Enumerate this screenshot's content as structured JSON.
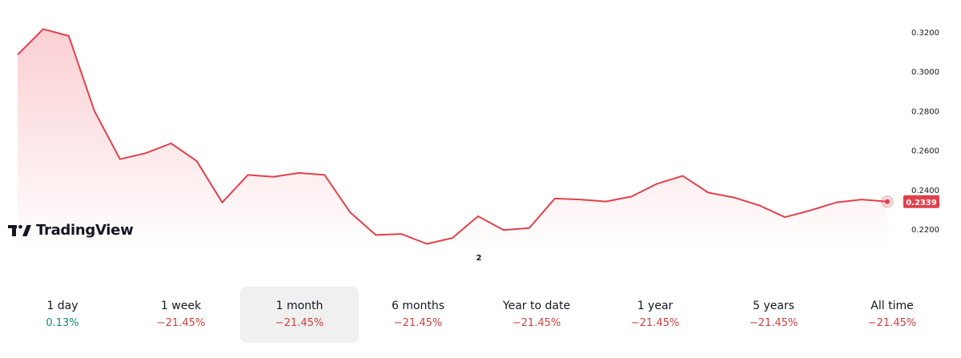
{
  "chart_data": {
    "type": "area",
    "y_axis_ticks": [
      "0.3200",
      "0.3000",
      "0.2800",
      "0.2600",
      "0.2400",
      "0.2200"
    ],
    "ylim": [
      0.22,
      0.32
    ],
    "x_tick_labels": [
      "2"
    ],
    "series": [
      {
        "values": [
          0.3085,
          0.3215,
          0.318,
          0.28,
          0.2555,
          0.2585,
          0.2635,
          0.2545,
          0.2335,
          0.2475,
          0.2465,
          0.2485,
          0.2475,
          0.2285,
          0.217,
          0.2175,
          0.2125,
          0.2155,
          0.2265,
          0.2195,
          0.2205,
          0.2355,
          0.235,
          0.234,
          0.2365,
          0.243,
          0.247,
          0.2385,
          0.236,
          0.232,
          0.226,
          0.2295,
          0.2335,
          0.235,
          0.2339
        ]
      }
    ],
    "last_value_label": "0.2339",
    "line_color": "#e0414b",
    "fill_color": "#f7a8ae",
    "grid": false
  },
  "logo": {
    "text": "TradingView"
  },
  "periods": [
    {
      "label": "1 day",
      "change": "0.13%",
      "direction": "up",
      "active": false
    },
    {
      "label": "1 week",
      "change": "−21.45%",
      "direction": "down",
      "active": false
    },
    {
      "label": "1 month",
      "change": "−21.45%",
      "direction": "down",
      "active": true
    },
    {
      "label": "6 months",
      "change": "−21.45%",
      "direction": "down",
      "active": false
    },
    {
      "label": "Year to date",
      "change": "−21.45%",
      "direction": "down",
      "active": false
    },
    {
      "label": "1 year",
      "change": "−21.45%",
      "direction": "down",
      "active": false
    },
    {
      "label": "5 years",
      "change": "−21.45%",
      "direction": "down",
      "active": false
    },
    {
      "label": "All time",
      "change": "−21.45%",
      "direction": "down",
      "active": false
    }
  ]
}
